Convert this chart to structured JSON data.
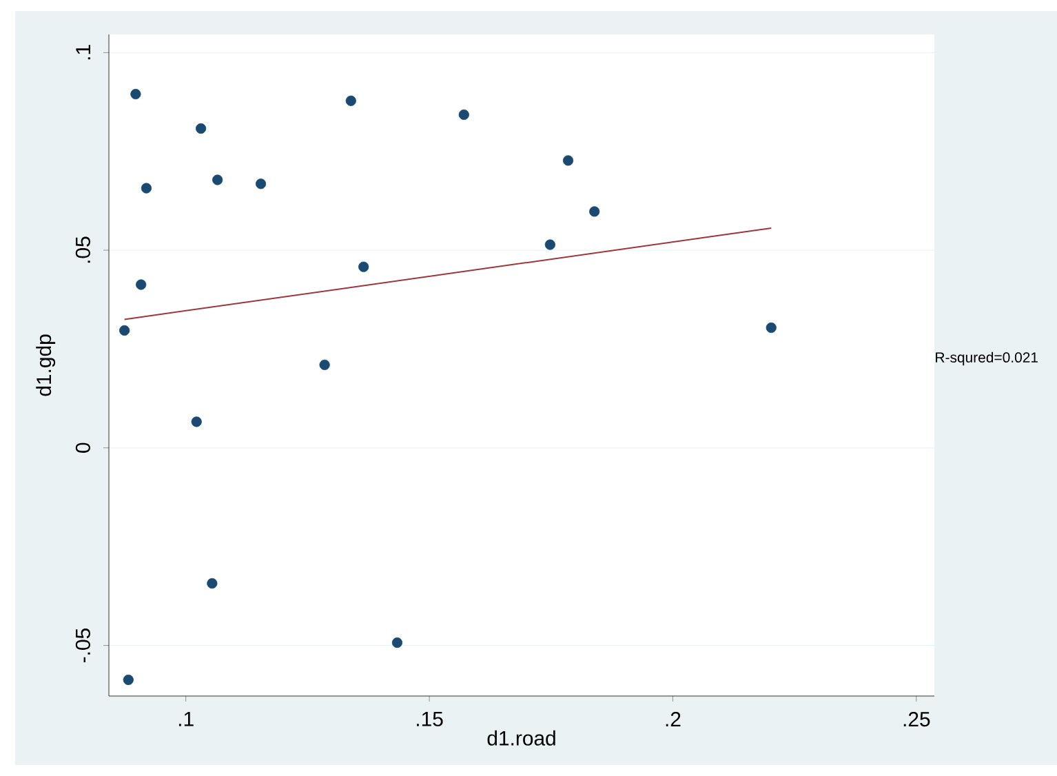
{
  "chart_data": {
    "type": "scatter",
    "xlabel": "d1.road",
    "ylabel": "d1.gdp",
    "xlim": [
      0.0842,
      0.2537
    ],
    "ylim": [
      -0.0628,
      0.1046
    ],
    "xticks": [
      {
        "value": 0.1,
        "label": ".1"
      },
      {
        "value": 0.15,
        "label": ".15"
      },
      {
        "value": 0.2,
        "label": ".2"
      },
      {
        "value": 0.25,
        "label": ".25"
      }
    ],
    "yticks": [
      {
        "value": -0.05,
        "label": "-.05"
      },
      {
        "value": 0,
        "label": "0"
      },
      {
        "value": 0.05,
        "label": ".05"
      },
      {
        "value": 0.1,
        "label": ".1"
      }
    ],
    "grid": "y",
    "series": [
      {
        "type": "scatter",
        "marker": "circle",
        "color": "#1a4a72",
        "x": [
          0.0874,
          0.0897,
          0.0908,
          0.0919,
          0.0882,
          0.1022,
          0.1031,
          0.1054,
          0.1065,
          0.1154,
          0.1285,
          0.1339,
          0.1365,
          0.1434,
          0.1571,
          0.1748,
          0.1785,
          0.1839,
          0.2202
        ],
        "values": [
          0.0297,
          0.0895,
          0.0413,
          0.0657,
          -0.0587,
          0.0066,
          0.0808,
          -0.0343,
          0.0678,
          0.0668,
          0.021,
          0.0878,
          0.0458,
          -0.0493,
          0.0843,
          0.0514,
          0.0727,
          0.0598,
          0.0304
        ]
      },
      {
        "type": "line",
        "color": "#a0343a",
        "x": [
          0.0874,
          0.2202
        ],
        "values": [
          0.0325,
          0.0556
        ]
      }
    ],
    "annotations": [
      "R-squred=0.021"
    ]
  }
}
